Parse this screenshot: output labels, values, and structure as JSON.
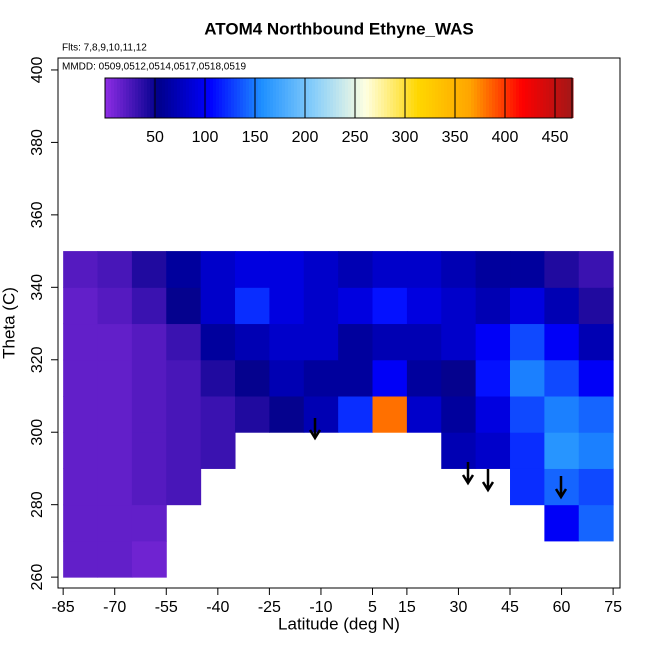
{
  "chart_data": {
    "type": "heatmap",
    "title": "ATOM4 Northbound Ethyne_WAS",
    "subtitle": "Flts: 7,8,9,10,11,12",
    "annotation": "MMDD: 0509,0512,0514,0517,0518,0519",
    "x_label": "Latitude (deg N)",
    "y_label": "Theta (C)",
    "x": [
      -80,
      -70,
      -60,
      -50,
      -40,
      -30,
      -20,
      -10,
      0,
      10,
      20,
      30,
      40,
      50,
      60,
      70
    ],
    "y": [
      265,
      275,
      285,
      295,
      305,
      315,
      325,
      335,
      345
    ],
    "z": [
      [
        15,
        15,
        10,
        null,
        null,
        null,
        null,
        null,
        null,
        null,
        null,
        null,
        null,
        null,
        null,
        null
      ],
      [
        15,
        15,
        15,
        null,
        null,
        null,
        null,
        null,
        null,
        null,
        null,
        null,
        null,
        null,
        100,
        140
      ],
      [
        15,
        15,
        20,
        25,
        null,
        null,
        null,
        null,
        null,
        null,
        null,
        null,
        null,
        120,
        140,
        130
      ],
      [
        15,
        15,
        20,
        25,
        30,
        null,
        null,
        null,
        null,
        null,
        null,
        70,
        80,
        120,
        160,
        150
      ],
      [
        15,
        15,
        20,
        25,
        30,
        40,
        50,
        70,
        120,
        380,
        80,
        60,
        90,
        130,
        150,
        140
      ],
      [
        15,
        15,
        20,
        25,
        40,
        50,
        70,
        60,
        60,
        100,
        60,
        50,
        110,
        150,
        130,
        100
      ],
      [
        15,
        15,
        20,
        30,
        60,
        70,
        80,
        80,
        60,
        70,
        70,
        80,
        100,
        130,
        100,
        70
      ],
      [
        15,
        20,
        30,
        50,
        80,
        120,
        90,
        80,
        90,
        110,
        90,
        80,
        70,
        90,
        70,
        40
      ],
      [
        20,
        25,
        40,
        60,
        80,
        90,
        90,
        80,
        70,
        80,
        80,
        70,
        60,
        60,
        40,
        30
      ]
    ],
    "xlim": [
      -86.5,
      77
    ],
    "ylim": [
      257,
      403.3
    ],
    "xticks": [
      -85,
      -70,
      -55,
      -40,
      -25,
      -10,
      5,
      15,
      30,
      45,
      60,
      75
    ],
    "yticks": [
      260,
      280,
      300,
      320,
      340,
      360,
      380,
      400
    ],
    "clim": [
      0,
      467
    ],
    "cticks": [
      50,
      100,
      150,
      200,
      250,
      300,
      350,
      400,
      450
    ],
    "colorscale": [
      "#8a2be2",
      "#00008b",
      "#0000ff",
      "#1e90ff",
      "#87cefa",
      "#ffffe0",
      "#ffd700",
      "#ffa500",
      "#ff0000",
      "#a01818"
    ]
  }
}
